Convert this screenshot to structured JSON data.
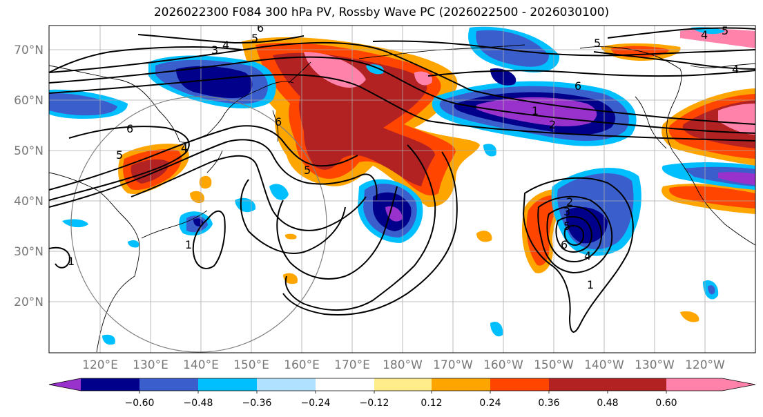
{
  "title": "2026022300 F084 300 hPa PV, Rossby Wave PC (2026022500 - 2026030100)",
  "lat_labels": [
    "70°N",
    "60°N",
    "50°N",
    "40°N",
    "30°N",
    "20°N"
  ],
  "lon_labels": [
    "120°E",
    "130°E",
    "140°E",
    "150°E",
    "160°E",
    "170°E",
    "180°W",
    "170°W",
    "160°W",
    "150°W",
    "140°W",
    "130°W",
    "120°W"
  ],
  "colorbar": {
    "colors": [
      "#9932cc",
      "#00008b",
      "#3a5fcd",
      "#00bfff",
      "#b0e2ff",
      "#ffffff",
      "#ffec8b",
      "#ffa500",
      "#ff4500",
      "#b22222",
      "#ff82ab"
    ],
    "tick_labels": [
      "−0.60",
      "−0.48",
      "−0.36",
      "−0.24",
      "−0.12",
      "0.12",
      "0.24",
      "0.36",
      "0.48",
      "0.60"
    ]
  },
  "contour_labels": [
    "6",
    "3",
    "4",
    "5",
    "6",
    "5",
    "4",
    "5",
    "6",
    "6",
    "1",
    "1",
    "2",
    "3",
    "5",
    "6",
    "4",
    "1",
    "5",
    "4",
    "2",
    "1",
    "4",
    "5"
  ]
}
